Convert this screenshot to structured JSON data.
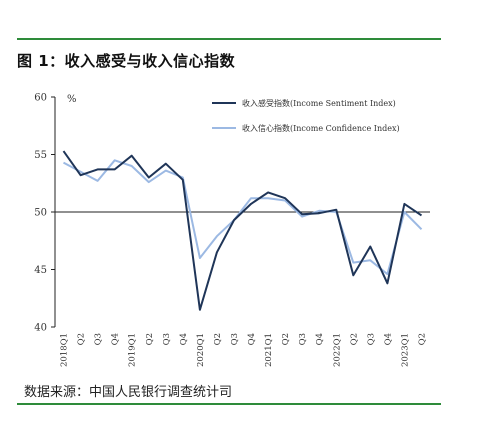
{
  "figure_title": "图 1：收入感受与收入信心指数",
  "source": "数据来源：中国人民银行调查统计司",
  "colors": {
    "rule": "#2e8b3a",
    "sentiment": "#1f3558",
    "confidence": "#9cb9e3",
    "axis": "#222222"
  },
  "chart_data": {
    "type": "line",
    "title": "",
    "xlabel": "",
    "ylabel": "%",
    "ylim": [
      40,
      60
    ],
    "yticks": [
      "40",
      "45",
      "50",
      "55",
      "60"
    ],
    "grid": false,
    "legend_position": "top-right",
    "baseline": 50,
    "categories": [
      "2018Q1",
      "Q2",
      "Q3",
      "Q4",
      "2019Q1",
      "Q2",
      "Q3",
      "Q4",
      "2020Q1",
      "Q2",
      "Q3",
      "Q4",
      "2021Q1",
      "Q2",
      "Q3",
      "Q4",
      "2022Q1",
      "Q2",
      "Q3",
      "Q4",
      "2023Q1",
      "Q2"
    ],
    "series": [
      {
        "name": "收入感受指数(Income Sentiment Index)",
        "values": [
          55.3,
          53.2,
          53.7,
          53.7,
          54.9,
          53.0,
          54.2,
          52.8,
          41.5,
          46.5,
          49.3,
          50.7,
          51.7,
          51.2,
          49.8,
          49.9,
          50.2,
          44.5,
          47.0,
          43.8,
          50.7,
          49.7
        ]
      },
      {
        "name": "收入信心指数(Income Confidence Index)",
        "values": [
          54.3,
          53.5,
          52.7,
          54.5,
          54.0,
          52.6,
          53.6,
          53.0,
          46.0,
          47.9,
          49.3,
          51.2,
          51.2,
          51.0,
          49.6,
          50.1,
          50.0,
          45.6,
          45.8,
          44.6,
          50.0,
          48.5
        ]
      }
    ]
  }
}
